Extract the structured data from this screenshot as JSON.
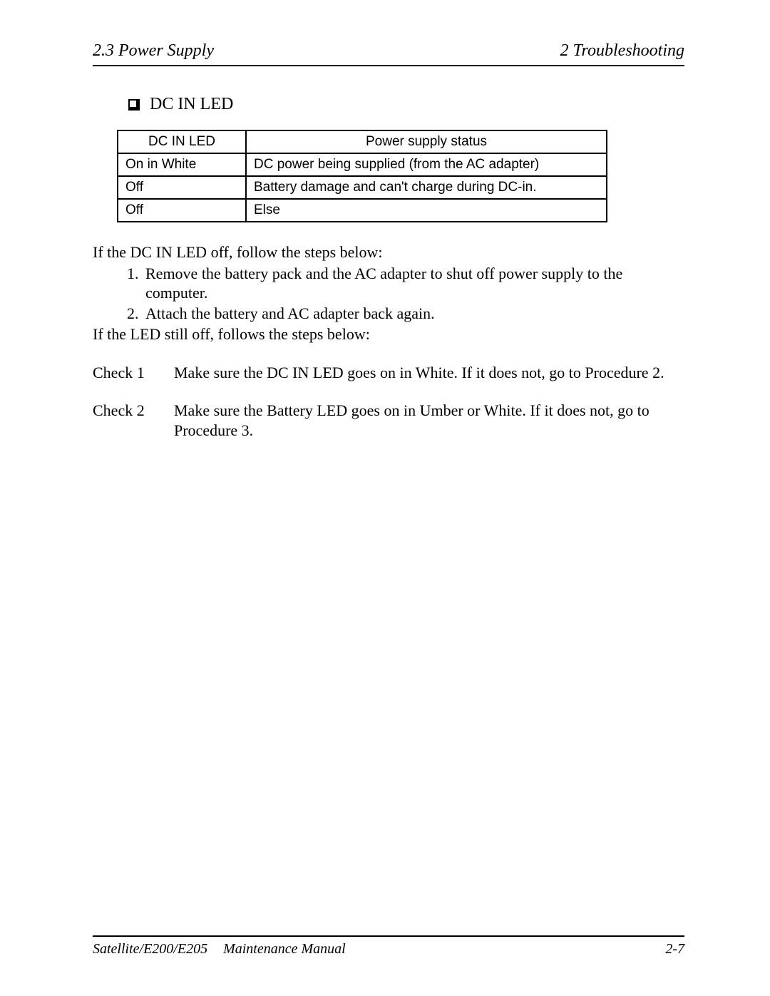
{
  "header": {
    "left": "2.3 Power Supply",
    "right": "2 Troubleshooting"
  },
  "section": {
    "title": "DC IN LED"
  },
  "table": {
    "columns": [
      "DC IN LED",
      "Power supply status"
    ],
    "rows": [
      [
        "On in White",
        "DC power being supplied (from the AC adapter)"
      ],
      [
        "Off",
        "Battery damage and can't charge during DC-in."
      ],
      [
        "Off",
        "Else"
      ]
    ]
  },
  "body": {
    "intro": "If the DC IN LED off, follow the steps below:",
    "steps": [
      "Remove the battery pack and the AC adapter to shut off power supply to the computer.",
      "Attach the battery and AC adapter back again."
    ],
    "followup": "If the LED still off, follows the steps below:"
  },
  "checks": [
    {
      "label": "Check 1",
      "text": "Make sure the DC IN LED goes on in White.  If it does not, go to Procedure 2."
    },
    {
      "label": "Check 2",
      "text": "Make sure the Battery LED goes on in Umber or White.  If it does not, go to Procedure 3."
    }
  ],
  "footer": {
    "product": "Satellite/E200/E205",
    "manual": "Maintenance Manual",
    "page": "2-7"
  }
}
